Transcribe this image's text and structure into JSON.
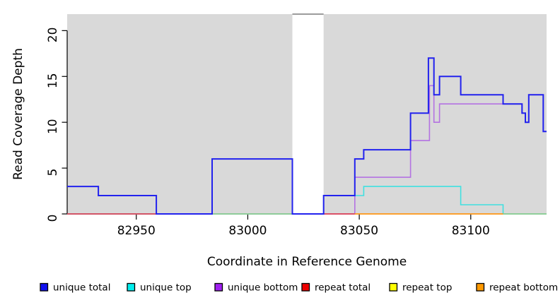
{
  "page": {
    "background": "#ffffff",
    "text_color": "#000000"
  },
  "chart_data": {
    "type": "line",
    "subtype": "step-coverage",
    "title": "",
    "xlabel": "Coordinate in Reference Genome",
    "ylabel": "Read Coverage Depth",
    "xlim": [
      82919,
      83134
    ],
    "ylim": [
      0,
      21.8
    ],
    "xticks": [
      82950,
      83000,
      83050,
      83100
    ],
    "yticks": [
      0,
      5,
      10,
      15,
      20
    ],
    "grid": false,
    "plot_bg": "#d9d9d9",
    "masked_region": {
      "x0": 83020,
      "x1": 83034,
      "cap_color": "#8e8e8e"
    },
    "series": [
      {
        "name": "repeat total",
        "color": "#dd4455",
        "width": 1.6,
        "z": 0,
        "draw": false,
        "points": [
          [
            82919,
            0
          ]
        ]
      },
      {
        "name": "repeat top",
        "color": "#f5e642",
        "width": 1.6,
        "z": 0,
        "draw": false,
        "points": [
          [
            82919,
            0
          ]
        ]
      },
      {
        "name": "repeat bottom",
        "color": "#ff9614",
        "width": 2.2,
        "z": 0,
        "draw": false,
        "points": [
          [
            82919,
            0
          ]
        ]
      },
      {
        "name": "unique bottom",
        "color": "#b472e2",
        "width": 1.6,
        "z": 1,
        "draw": true,
        "points": [
          [
            82919,
            0
          ],
          [
            83048,
            4
          ],
          [
            83073,
            8
          ],
          [
            83081.5,
            14
          ],
          [
            83083.5,
            10
          ],
          [
            83086,
            12
          ],
          [
            83123,
            11
          ],
          [
            83124.5,
            10
          ],
          [
            83126,
            13
          ],
          [
            83132.5,
            9
          ]
        ]
      },
      {
        "name": "unique top",
        "color": "#3fe0e0",
        "width": 1.6,
        "z": 2,
        "draw": true,
        "points": [
          [
            82919,
            0
          ],
          [
            83034,
            2
          ],
          [
            83052,
            3
          ],
          [
            83095.5,
            1
          ],
          [
            83114.5,
            0
          ]
        ]
      },
      {
        "name": "unique total",
        "color": "#2222ee",
        "width": 2.0,
        "z": 4,
        "draw": true,
        "points": [
          [
            82919,
            3
          ],
          [
            82933,
            2
          ],
          [
            82959,
            0
          ],
          [
            82984,
            6
          ],
          [
            83020,
            0
          ],
          [
            83034,
            2
          ],
          [
            83048,
            6
          ],
          [
            83052,
            7
          ],
          [
            83073,
            11
          ],
          [
            83081,
            17
          ],
          [
            83083.5,
            13
          ],
          [
            83086,
            15
          ],
          [
            83095.5,
            13
          ],
          [
            83114.5,
            12
          ],
          [
            83123,
            11
          ],
          [
            83124.5,
            10
          ],
          [
            83126,
            13
          ],
          [
            83132.5,
            9
          ]
        ]
      }
    ],
    "baseline_segments": [
      {
        "color": "#dd4455",
        "x0": 82919,
        "x1": 82984,
        "note": "repeat total at 0"
      },
      {
        "color": "#8fcc8f",
        "x0": 82984,
        "x1": 83020,
        "note": "unique top + repeat top overlap at 0"
      },
      {
        "color": "#dd4455",
        "x0": 83034,
        "x1": 83048,
        "note": "repeat total at 0"
      },
      {
        "color": "#ff9614",
        "x0": 83048,
        "x1": 83114.5,
        "note": "repeat bottom at 0"
      },
      {
        "color": "#8fcc8f",
        "x0": 83114.5,
        "x1": 83134,
        "note": "unique top + repeat top overlap at 0"
      }
    ],
    "legend_position": "bottom",
    "legend": [
      {
        "label": "unique total",
        "color": "#1010ee"
      },
      {
        "label": "unique top",
        "color": "#00eeee"
      },
      {
        "label": "unique bottom",
        "color": "#a020f0"
      },
      {
        "label": "repeat total",
        "color": "#ee0000"
      },
      {
        "label": "repeat top",
        "color": "#ffff00"
      },
      {
        "label": "repeat bottom",
        "color": "#ff9900"
      }
    ]
  }
}
